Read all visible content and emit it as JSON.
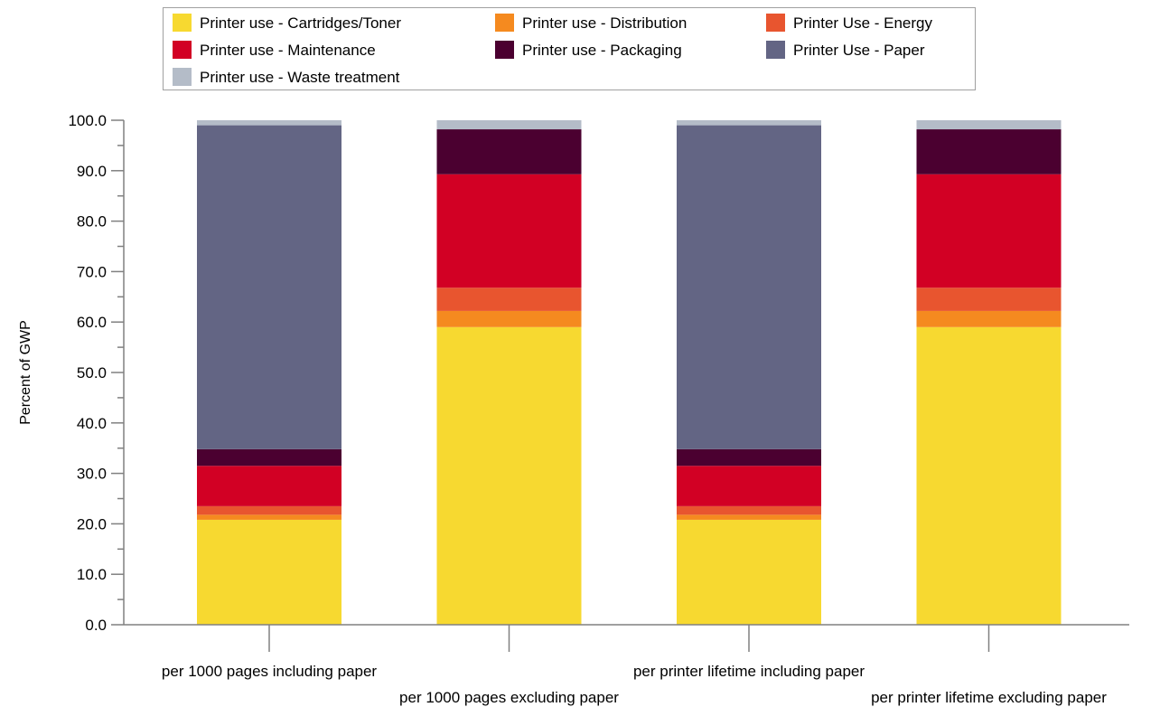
{
  "chart_data": {
    "type": "bar",
    "stacked": true,
    "title": "",
    "xlabel": "",
    "ylabel": "Percent of GWP",
    "ylim": [
      0,
      100
    ],
    "ytick_step": 10,
    "ytick_decimals": 1,
    "grid": false,
    "legend_position": "top-center",
    "categories": [
      "per 1000 pages including paper",
      "per 1000 pages excluding paper",
      "per printer lifetime including paper",
      "per printer lifetime excluding paper"
    ],
    "series": [
      {
        "name": "Printer use - Cartridges/Toner",
        "color": "#F7D930",
        "values": [
          20.8,
          59.0,
          20.8,
          59.0
        ]
      },
      {
        "name": "Printer use - Distribution",
        "color": "#F58A1F",
        "values": [
          1.0,
          3.2,
          1.0,
          3.2
        ]
      },
      {
        "name": "Printer Use - Energy",
        "color": "#E8552F",
        "values": [
          1.7,
          4.6,
          1.7,
          4.6
        ]
      },
      {
        "name": "Printer use - Maintenance",
        "color": "#D20024",
        "values": [
          8.0,
          22.5,
          8.0,
          22.5
        ]
      },
      {
        "name": "Printer use - Packaging",
        "color": "#4B0030",
        "values": [
          3.3,
          8.9,
          3.3,
          8.9
        ]
      },
      {
        "name": "Printer Use - Paper",
        "color": "#636584",
        "values": [
          64.2,
          0.0,
          64.2,
          0.0
        ]
      },
      {
        "name": "Printer use - Waste treatment",
        "color": "#B4BCC8",
        "values": [
          1.0,
          1.8,
          1.0,
          1.8
        ]
      }
    ]
  }
}
